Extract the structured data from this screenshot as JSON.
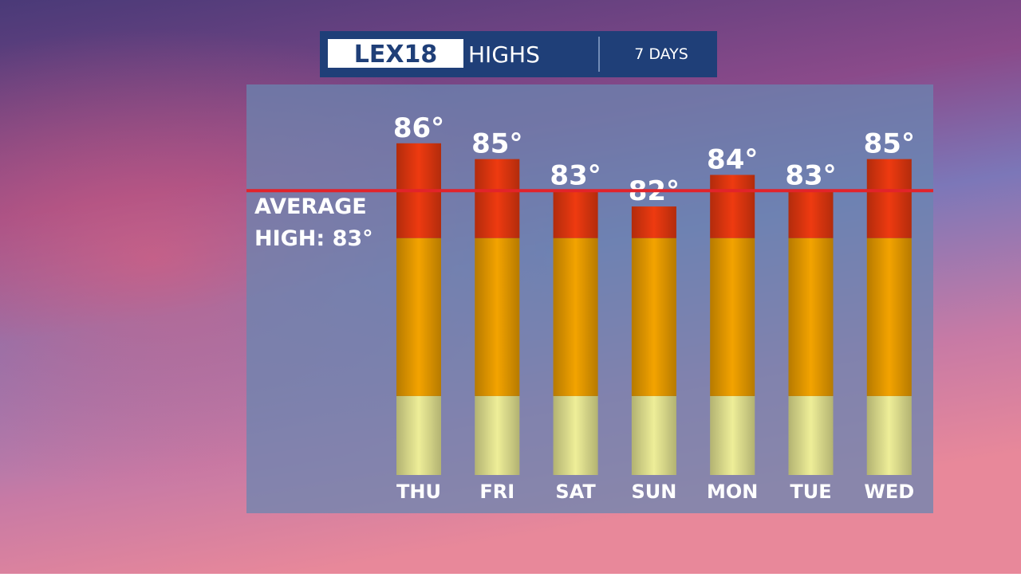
{
  "header": {
    "logo": "LEX18",
    "title": "HIGHS",
    "subtitle": "7 DAYS"
  },
  "chart_data": {
    "type": "bar",
    "categories": [
      "THU",
      "FRI",
      "SAT",
      "SUN",
      "MON",
      "TUE",
      "WED"
    ],
    "values": [
      86,
      85,
      83,
      82,
      84,
      83,
      85
    ],
    "value_labels": [
      "86°",
      "85°",
      "83°",
      "82°",
      "84°",
      "83°",
      "85°"
    ],
    "ylim": [
      65,
      87
    ],
    "thresholds": [
      70,
      80
    ],
    "colors": [
      "#eeee98",
      "#f3a300",
      "#ee3a10"
    ],
    "average": {
      "label_lines": [
        "AVERAGE",
        "HIGH: 83°"
      ],
      "value": 83,
      "color": "#e2232b"
    }
  }
}
